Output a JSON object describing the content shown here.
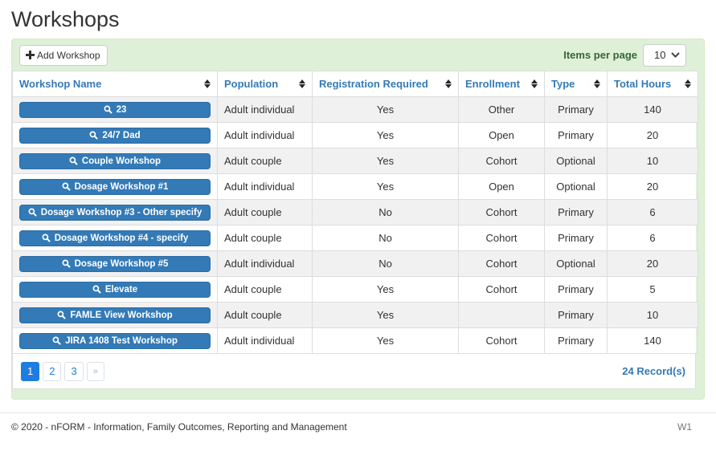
{
  "title": "Workshops",
  "toolbar": {
    "add_button_label": "Add Workshop",
    "items_per_page_label": "Items per page",
    "items_per_page_value": "10"
  },
  "table": {
    "columns": [
      "Workshop Name",
      "Population",
      "Registration Required",
      "Enrollment",
      "Type",
      "Total Hours"
    ],
    "rows": [
      {
        "name": "23",
        "population": "Adult individual",
        "registration_required": "Yes",
        "enrollment": "Other",
        "type": "Primary",
        "total_hours": "140"
      },
      {
        "name": "24/7 Dad",
        "population": "Adult individual",
        "registration_required": "Yes",
        "enrollment": "Open",
        "type": "Primary",
        "total_hours": "20"
      },
      {
        "name": "Couple Workshop",
        "population": "Adult couple",
        "registration_required": "Yes",
        "enrollment": "Cohort",
        "type": "Optional",
        "total_hours": "10"
      },
      {
        "name": "Dosage Workshop #1",
        "population": "Adult individual",
        "registration_required": "Yes",
        "enrollment": "Open",
        "type": "Optional",
        "total_hours": "20"
      },
      {
        "name": "Dosage Workshop #3 - Other specify",
        "population": "Adult couple",
        "registration_required": "No",
        "enrollment": "Cohort",
        "type": "Primary",
        "total_hours": "6"
      },
      {
        "name": "Dosage Workshop #4 - specify",
        "population": "Adult couple",
        "registration_required": "No",
        "enrollment": "Cohort",
        "type": "Primary",
        "total_hours": "6"
      },
      {
        "name": "Dosage Workshop #5",
        "population": "Adult individual",
        "registration_required": "No",
        "enrollment": "Cohort",
        "type": "Optional",
        "total_hours": "20"
      },
      {
        "name": "Elevate",
        "population": "Adult couple",
        "registration_required": "Yes",
        "enrollment": "Cohort",
        "type": "Primary",
        "total_hours": "5"
      },
      {
        "name": "FAMLE View Workshop",
        "population": "Adult couple",
        "registration_required": "Yes",
        "enrollment": "",
        "type": "Primary",
        "total_hours": "10"
      },
      {
        "name": "JIRA 1408 Test Workshop",
        "population": "Adult individual",
        "registration_required": "Yes",
        "enrollment": "Cohort",
        "type": "Primary",
        "total_hours": "140"
      }
    ]
  },
  "pagination": {
    "pages": [
      "1",
      "2",
      "3",
      "»"
    ],
    "active_page": "1",
    "records_label": "24 Record(s)"
  },
  "footer": {
    "copyright": "© 2020 - nFORM - Information, Family Outcomes, Reporting and Management",
    "version": "W1"
  },
  "colors": {
    "accent_blue": "#337ab7",
    "pagination_blue": "#1f7ce0",
    "panel_green_bg": "#dff0d8",
    "panel_green_border": "#d6e9c6",
    "items_per_page_label_color": "#356635",
    "row_stripe": "#f1f1f1"
  },
  "icons": {
    "workshop_button_icon": "search-icon",
    "header_sort_icon": "sort-icon",
    "add_button_icon": "plus-icon",
    "select_icon": "chevron-down-icon"
  }
}
